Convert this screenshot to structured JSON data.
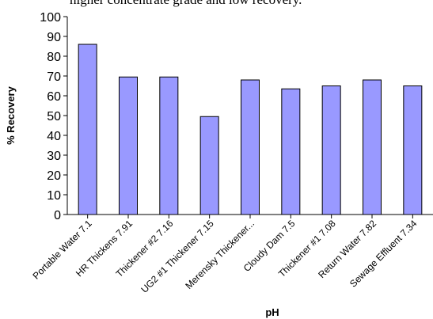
{
  "caption": "higher concentrate grade and low recovery.",
  "chart_data": {
    "type": "bar",
    "categories": [
      "Portable Water 7.1",
      "HR Thickens 7.91",
      "Thickener #2 7.16",
      "UG2 #1 Thickener 7.15",
      "Merensky Thickener...",
      "Cloudy Dam 7.5",
      "Thickener #1 7.08",
      "Return Water 7.82",
      "Sewage Effluent 7.34"
    ],
    "values": [
      86,
      69.5,
      69.5,
      49.5,
      68,
      63.5,
      65,
      68,
      65
    ],
    "xlabel": "pH",
    "ylabel": "% Recovery",
    "ylim": [
      0,
      100
    ],
    "yticks": [
      0,
      10,
      20,
      30,
      40,
      50,
      60,
      70,
      80,
      90,
      100
    ],
    "grid": false,
    "colors": {
      "bar_fill": "#9999ff",
      "bar_stroke": "#000000"
    }
  }
}
